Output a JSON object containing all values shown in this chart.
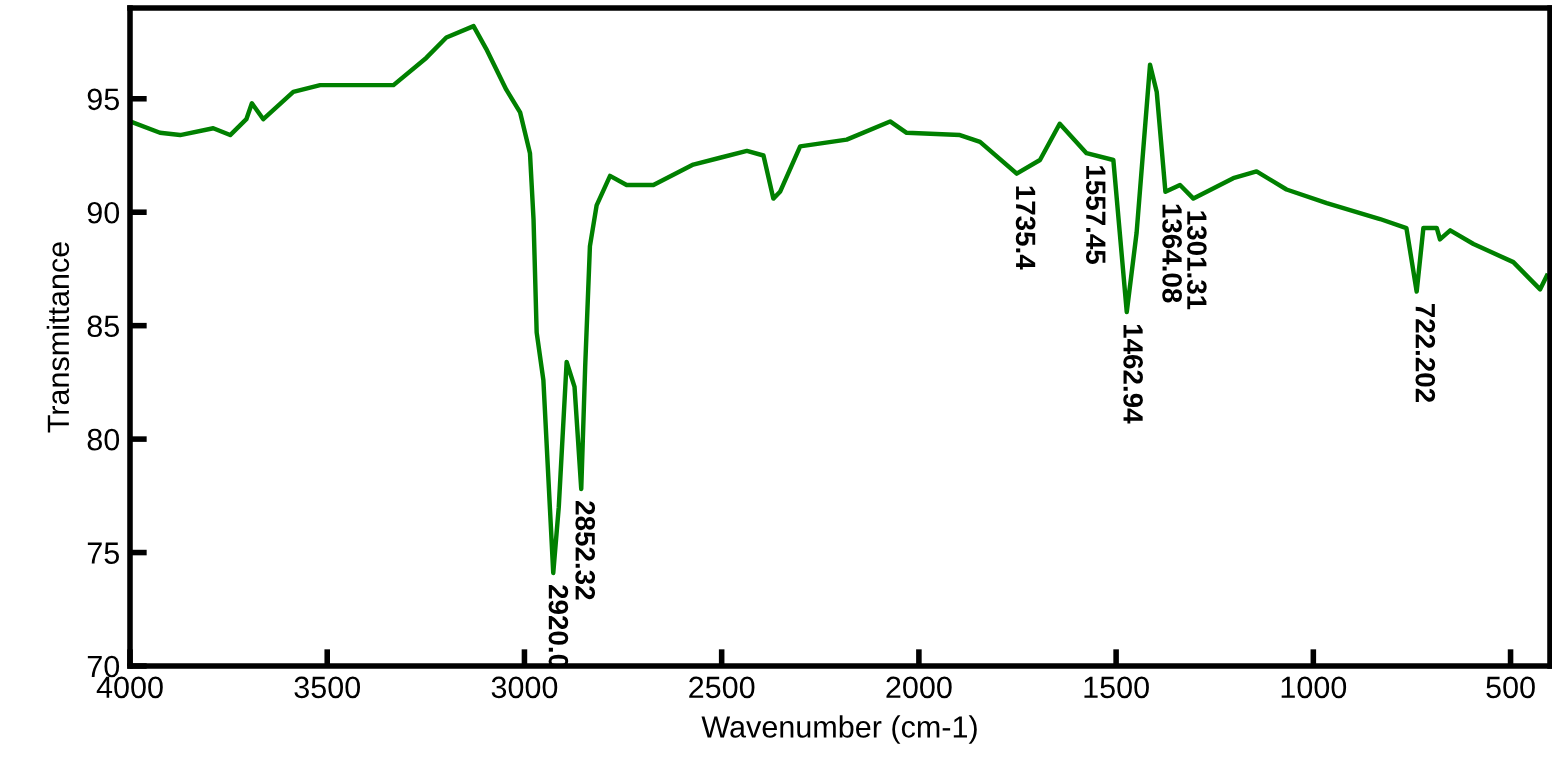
{
  "chart_data": {
    "type": "line",
    "xlabel": "Wavenumber (cm-1)",
    "ylabel": "Transmittance",
    "xlim": [
      4000,
      400
    ],
    "ylim": [
      70,
      99
    ],
    "xticks": [
      4000,
      3500,
      3000,
      2500,
      2000,
      1500,
      1000,
      500
    ],
    "yticks": [
      70,
      75,
      80,
      85,
      90,
      95
    ],
    "grid": false,
    "marker": "none",
    "line_style": "solid",
    "series": [
      {
        "color": "#008000",
        "x": [
          4000,
          3924,
          3873,
          3789,
          3746,
          3705,
          3691,
          3662,
          3586,
          3518,
          3451,
          3332,
          3249,
          3198,
          3129,
          3097,
          3046,
          3011,
          2986,
          2977,
          2969,
          2952,
          2927,
          2913,
          2893,
          2873,
          2856,
          2846,
          2834,
          2817,
          2783,
          2741,
          2673,
          2572,
          2504,
          2436,
          2394,
          2369,
          2352,
          2301,
          2183,
          2073,
          2031,
          1896,
          1845,
          1752,
          1693,
          1643,
          1575,
          1507,
          1473,
          1448,
          1414,
          1397,
          1375,
          1338,
          1304,
          1203,
          1144,
          1068,
          966,
          831,
          764,
          738,
          721,
          687,
          679,
          653,
          594,
          493,
          425,
          408
        ],
        "values": [
          94.0,
          93.5,
          93.4,
          93.7,
          93.4,
          94.1,
          94.8,
          94.1,
          95.3,
          95.6,
          95.6,
          95.6,
          96.8,
          97.7,
          98.2,
          97.2,
          95.4,
          94.4,
          92.6,
          89.7,
          84.7,
          82.6,
          74.1,
          77.0,
          83.4,
          82.3,
          77.8,
          83.2,
          88.5,
          90.3,
          91.6,
          91.2,
          91.2,
          92.1,
          92.4,
          92.7,
          92.5,
          90.6,
          90.9,
          92.9,
          93.2,
          94.0,
          93.5,
          93.4,
          93.1,
          91.7,
          92.3,
          93.9,
          92.6,
          92.3,
          85.6,
          89.1,
          96.5,
          95.3,
          90.9,
          91.2,
          90.6,
          91.5,
          91.8,
          91.0,
          90.4,
          89.7,
          89.3,
          86.5,
          89.3,
          89.3,
          88.8,
          89.2,
          88.6,
          87.8,
          86.6,
          87.2
        ]
      }
    ],
    "annotations": [
      {
        "text": "2920.0",
        "x": 2920,
        "y": 74.1
      },
      {
        "text": "2852.32",
        "x": 2852,
        "y": 77.8
      },
      {
        "text": "1735.4",
        "x": 1735.4,
        "y": 91.7
      },
      {
        "text": "1557.45",
        "x": 1557.45,
        "y": 92.6
      },
      {
        "text": "1462.94",
        "x": 1462.94,
        "y": 85.6
      },
      {
        "text": "1364.08",
        "x": 1364.08,
        "y": 90.9
      },
      {
        "text": "1301.31",
        "x": 1301.31,
        "y": 90.6
      },
      {
        "text": "722.202",
        "x": 722.202,
        "y": 86.5
      }
    ]
  }
}
